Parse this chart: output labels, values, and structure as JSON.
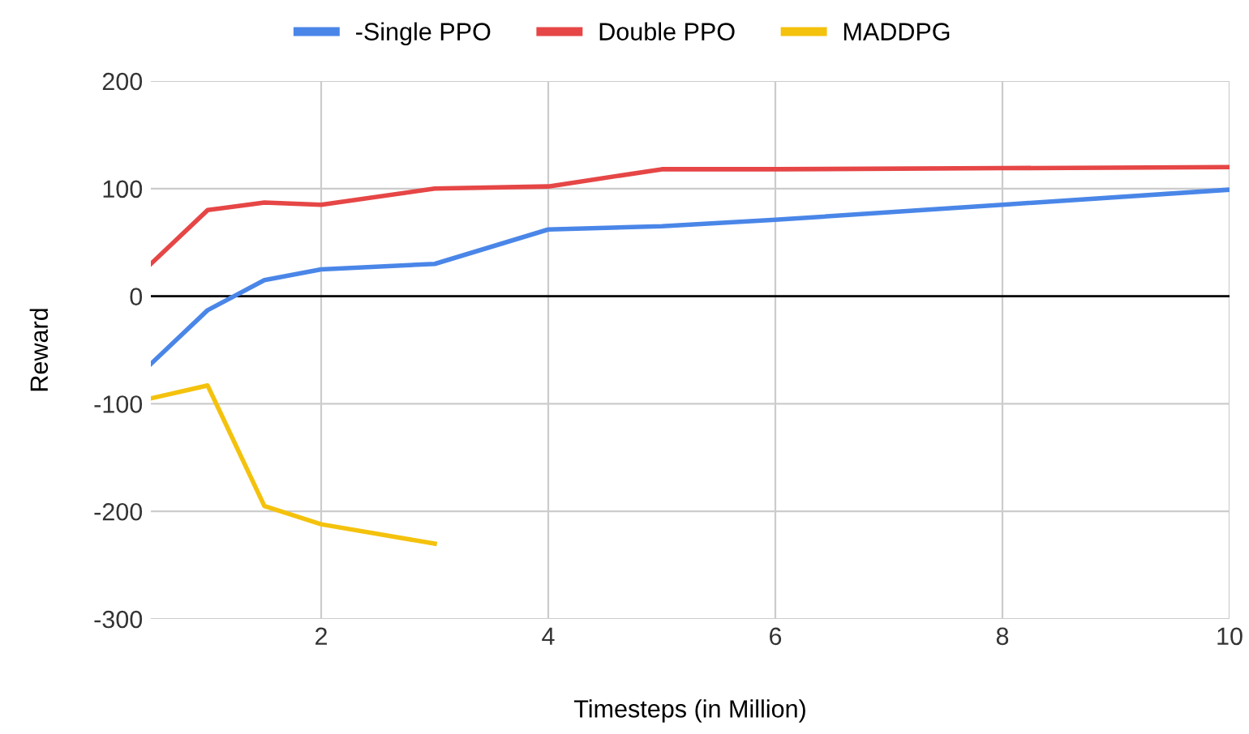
{
  "chart_data": {
    "type": "line",
    "xlabel": "Timesteps (in Million)",
    "ylabel": "Reward",
    "xlim": [
      0.5,
      10
    ],
    "xticks": [
      2,
      4,
      6,
      8,
      10
    ],
    "ylim": [
      -300,
      200
    ],
    "yticks": [
      -300,
      -200,
      -100,
      0,
      100,
      200
    ],
    "grid": true,
    "legend": "top",
    "marker": "none",
    "line_style": "solid",
    "ref_lines": [
      {
        "axis": "y",
        "value": 0,
        "color": "#000000"
      }
    ],
    "series": [
      {
        "name": "-Single PPO",
        "color": "#4a86e8",
        "x": [
          0.5,
          1,
          1.5,
          2,
          3,
          4,
          5,
          6,
          8,
          10
        ],
        "values": [
          -63,
          -13,
          15,
          25,
          30,
          62,
          65,
          71,
          85,
          99
        ]
      },
      {
        "name": "Double PPO",
        "color": "#e64646",
        "x": [
          0.5,
          1,
          1.5,
          2,
          3,
          4,
          5,
          6,
          8,
          10
        ],
        "values": [
          30,
          80,
          87,
          85,
          100,
          102,
          118,
          118,
          119,
          120
        ]
      },
      {
        "name": "MADDPG",
        "color": "#f4c20d",
        "x": [
          0.5,
          1,
          1.5,
          2,
          3
        ],
        "values": [
          -95,
          -83,
          -195,
          -212,
          -230
        ]
      }
    ]
  }
}
